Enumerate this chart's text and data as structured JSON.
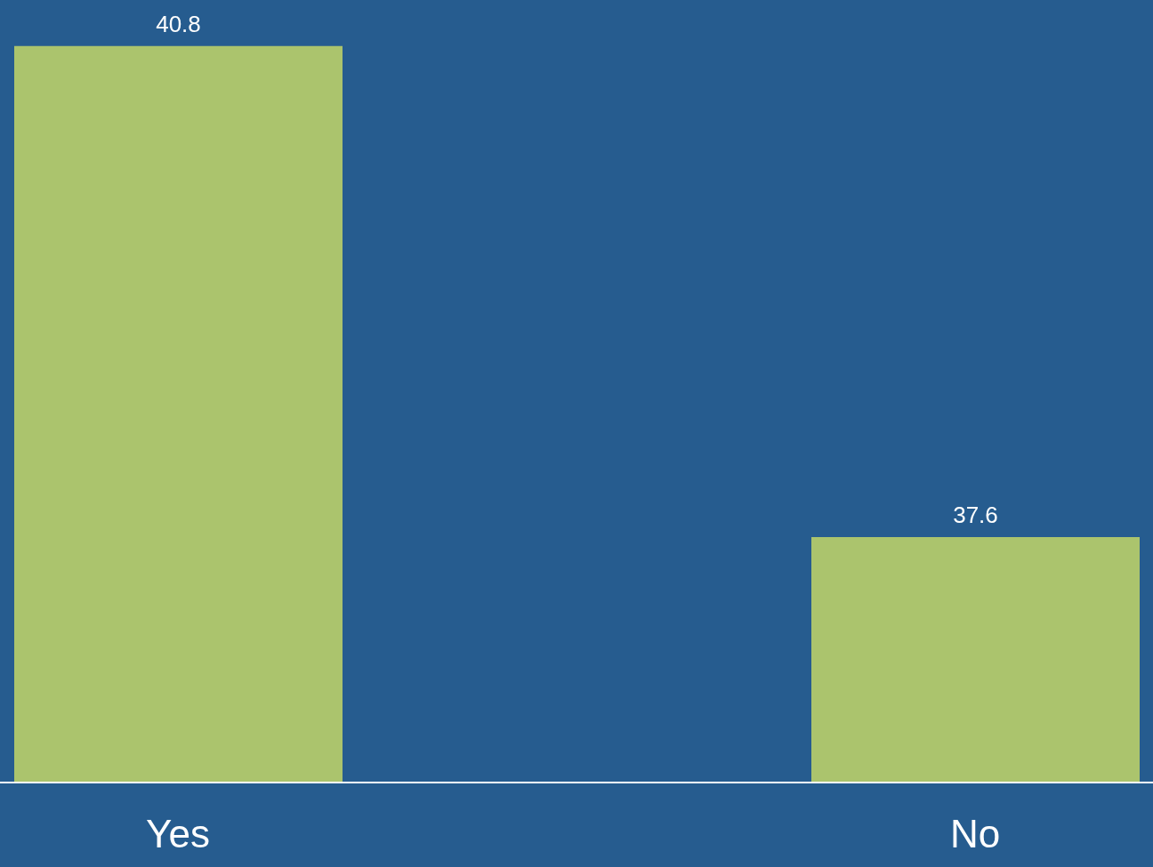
{
  "chart_data": {
    "type": "bar",
    "categories": [
      "Yes",
      "No"
    ],
    "values": [
      40.8,
      37.6
    ],
    "color": "#abc46d",
    "ylim": [
      36,
      41.1
    ],
    "data_labels": true,
    "tick_labels": "x"
  }
}
